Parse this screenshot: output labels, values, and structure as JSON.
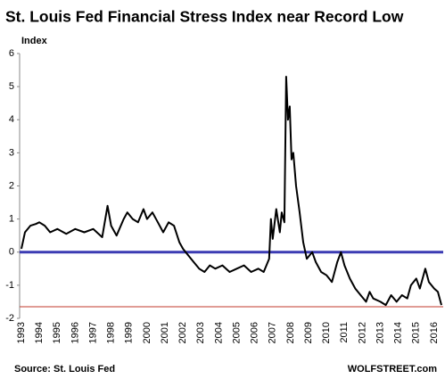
{
  "chart_data": {
    "type": "line",
    "title": "St. Louis Fed Financial Stress Index near Record Low",
    "y_label": "Index",
    "source": "Source: St. Louis Fed",
    "credit": "WOLFSTREET.com",
    "xlim": [
      1992.9,
      2016.5
    ],
    "xticks": [
      1993,
      1994,
      1995,
      1996,
      1997,
      1998,
      1999,
      2000,
      2001,
      2002,
      2003,
      2004,
      2005,
      2006,
      2007,
      2008,
      2009,
      2010,
      2011,
      2012,
      2013,
      2014,
      2015,
      2016
    ],
    "ylim": [
      -2,
      6
    ],
    "yticks": [
      -2,
      -1,
      0,
      1,
      2,
      3,
      4,
      5,
      6
    ],
    "grid": false,
    "hlines": [
      {
        "value": 0,
        "color": "#3b3bb3"
      },
      {
        "value": -1.65,
        "color": "#c0392b"
      }
    ],
    "series": [
      {
        "name": "Index",
        "color": "#000000",
        "x": [
          1993.0,
          1993.2,
          1993.5,
          1993.8,
          1994.0,
          1994.3,
          1994.6,
          1995.0,
          1995.5,
          1996.0,
          1996.5,
          1997.0,
          1997.5,
          1997.8,
          1998.0,
          1998.3,
          1998.7,
          1998.9,
          1999.2,
          1999.5,
          1999.8,
          2000.0,
          2000.3,
          2000.6,
          2000.9,
          2001.2,
          2001.5,
          2001.8,
          2002.0,
          2002.3,
          2002.6,
          2002.9,
          2003.2,
          2003.5,
          2003.8,
          2004.2,
          2004.6,
          2005.0,
          2005.4,
          2005.8,
          2006.2,
          2006.5,
          2006.8,
          2006.9,
          2007.0,
          2007.2,
          2007.4,
          2007.5,
          2007.65,
          2007.75,
          2007.85,
          2007.95,
          2008.05,
          2008.15,
          2008.3,
          2008.5,
          2008.7,
          2008.9,
          2009.2,
          2009.4,
          2009.7,
          2010.0,
          2010.3,
          2010.6,
          2010.8,
          2011.0,
          2011.3,
          2011.6,
          2011.9,
          2012.2,
          2012.4,
          2012.6,
          2013.0,
          2013.3,
          2013.6,
          2013.9,
          2014.2,
          2014.5,
          2014.7,
          2015.0,
          2015.2,
          2015.5,
          2015.7,
          2016.0,
          2016.2,
          2016.4
        ],
        "values": [
          0.1,
          0.6,
          0.8,
          0.85,
          0.9,
          0.8,
          0.6,
          0.7,
          0.55,
          0.7,
          0.6,
          0.7,
          0.45,
          1.4,
          0.8,
          0.5,
          1.0,
          1.2,
          1.0,
          0.9,
          1.3,
          1.0,
          1.2,
          0.9,
          0.6,
          0.9,
          0.8,
          0.3,
          0.1,
          -0.1,
          -0.3,
          -0.5,
          -0.6,
          -0.4,
          -0.5,
          -0.4,
          -0.6,
          -0.5,
          -0.4,
          -0.6,
          -0.5,
          -0.6,
          -0.2,
          1.0,
          0.4,
          1.3,
          0.6,
          1.2,
          0.9,
          5.3,
          4.0,
          4.4,
          2.8,
          3.0,
          2.0,
          1.2,
          0.3,
          -0.2,
          0.0,
          -0.3,
          -0.6,
          -0.7,
          -0.9,
          -0.3,
          0.0,
          -0.4,
          -0.8,
          -1.1,
          -1.3,
          -1.5,
          -1.2,
          -1.4,
          -1.5,
          -1.6,
          -1.3,
          -1.5,
          -1.3,
          -1.4,
          -1.0,
          -0.8,
          -1.1,
          -0.5,
          -0.9,
          -1.1,
          -1.2,
          -1.6
        ]
      }
    ]
  }
}
